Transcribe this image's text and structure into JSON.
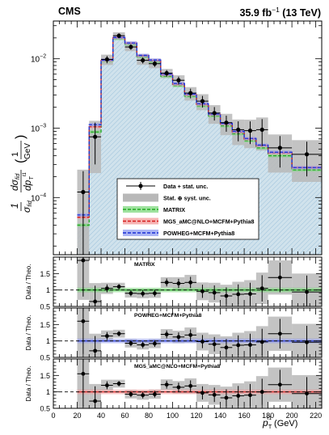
{
  "header": {
    "experiment": "CMS",
    "luminosity_label": "35.9 fb",
    "luminosity_exponent": "−1",
    "energy_label": "(13 TeV)"
  },
  "legend": {
    "placement": "lower-center inside main panel",
    "entries": [
      {
        "label": "Data + stat. unc.",
        "style": "data"
      },
      {
        "label": "Stat. ⊕ syst. unc.",
        "style": "grey-box"
      },
      {
        "label": "MATRIX",
        "style": "green"
      },
      {
        "label": "MG5_aMC@NLO+MCFM+Pythia8",
        "style": "red"
      },
      {
        "label": "POWHEG+MCFM+Pythia8",
        "style": "blue"
      }
    ]
  },
  "colors": {
    "hatch_fill": "#d0e2ec",
    "hatch_line": "#4a90c0",
    "matrix": "#22aa22",
    "matrix_band": "#7ed87e",
    "mg5": "#d41c1c",
    "mg5_band": "#f39a9a",
    "powheg": "#1a2fd6",
    "powheg_band": "#8f9bf0",
    "unc_box": "#b8b8b8",
    "data": "#000000"
  },
  "chart_data": {
    "type": "line",
    "x_bin_edges": [
      0,
      10,
      20,
      30,
      40,
      50,
      60,
      70,
      80,
      90,
      100,
      110,
      120,
      130,
      140,
      150,
      160,
      170,
      180,
      200,
      225
    ],
    "xlim": [
      0,
      225
    ],
    "x_ticks": [
      0,
      20,
      40,
      60,
      80,
      100,
      120,
      140,
      160,
      180,
      200,
      220
    ],
    "xlabel": {
      "base": "p",
      "sub": "T",
      "sup": "ℓ1",
      "unit": "(GeV)"
    },
    "main_panel": {
      "ylabel": {
        "prefix": "1",
        "sigma": "σ",
        "sub_fid": "fid",
        "d": "d",
        "pt_base": "p",
        "pt_sub": "T",
        "pt_sup": "ℓ1",
        "unit_num": "1",
        "unit_den": "GeV"
      },
      "y_scale": "log",
      "ylim": [
        1.5e-05,
        0.035
      ],
      "y_tick_labels": [
        {
          "value": 0.0001,
          "mantissa": "10",
          "exponent": "−4"
        },
        {
          "value": 0.001,
          "mantissa": "10",
          "exponent": "−3"
        },
        {
          "value": 0.01,
          "mantissa": "10",
          "exponent": "−2"
        }
      ],
      "series": [
        {
          "name": "Data + stat. unc.",
          "kind": "points",
          "x": [
            25,
            35,
            45,
            55,
            65,
            75,
            85,
            95,
            105,
            115,
            125,
            135,
            145,
            155,
            165,
            175,
            190,
            212.5
          ],
          "y": [
            0.00012,
            0.00075,
            0.0098,
            0.0215,
            0.0148,
            0.0095,
            0.0085,
            0.0062,
            0.0049,
            0.0032,
            0.00245,
            0.00165,
            0.0012,
            0.00095,
            0.00092,
            0.00095,
            0.00052,
            0.00042
          ],
          "y_unc_rel": [
            1.0,
            0.6,
            0.12,
            0.08,
            0.09,
            0.1,
            0.1,
            0.11,
            0.13,
            0.16,
            0.19,
            0.22,
            0.26,
            0.32,
            0.36,
            0.42,
            0.48,
            0.52
          ],
          "syst_band_rel": [
            1.1,
            0.7,
            0.17,
            0.12,
            0.13,
            0.14,
            0.14,
            0.15,
            0.18,
            0.22,
            0.26,
            0.3,
            0.34,
            0.4,
            0.44,
            0.5,
            0.56,
            0.6
          ]
        },
        {
          "name": "MATRIX",
          "kind": "step",
          "values": [
            0.0,
            0.0,
            4e-05,
            0.00088,
            0.0093,
            0.0195,
            0.0162,
            0.0107,
            0.0091,
            0.0056,
            0.0041,
            0.0029,
            0.0021,
            0.0015,
            0.00108,
            0.00083,
            0.00066,
            0.00052,
            0.0004,
            0.00025
          ]
        },
        {
          "name": "MG5_aMC@NLO+MCFM+Pythia8",
          "kind": "step",
          "values": [
            0.0,
            0.0,
            5.2e-05,
            0.00105,
            0.0095,
            0.0202,
            0.0168,
            0.0111,
            0.0095,
            0.0059,
            0.0043,
            0.00305,
            0.0022,
            0.00158,
            0.00115,
            0.00088,
            0.0007,
            0.00056,
            0.00044,
            0.00027
          ]
        },
        {
          "name": "POWHEG+MCFM+Pythia8",
          "kind": "step",
          "values": [
            0.0,
            0.0,
            5.6e-05,
            0.00112,
            0.0096,
            0.0203,
            0.0169,
            0.0112,
            0.0096,
            0.006,
            0.0044,
            0.0031,
            0.00225,
            0.0016,
            0.00117,
            0.0009,
            0.00071,
            0.00057,
            0.00045,
            0.00027
          ]
        }
      ]
    },
    "ratio_panels": [
      {
        "title": "MATRIX",
        "ylabel": "Data / Theo.",
        "ylim": [
          0.5,
          2.0
        ],
        "y_tick_labels": [
          "0.5",
          "1",
          "1.5"
        ],
        "theory": "MATRIX",
        "ratio": [
          1.9,
          0.65,
          1.05,
          1.1,
          0.9,
          0.89,
          0.9,
          1.23,
          1.2,
          1.23,
          0.96,
          0.92,
          0.82,
          0.87,
          0.88,
          1.05,
          1.38,
          0.94
        ],
        "ratio_unc": [
          1.1,
          0.48,
          0.12,
          0.08,
          0.09,
          0.1,
          0.1,
          0.12,
          0.14,
          0.17,
          0.2,
          0.22,
          0.26,
          0.3,
          0.34,
          0.4,
          0.45,
          0.5
        ],
        "syst_unc": [
          1.2,
          0.56,
          0.17,
          0.12,
          0.13,
          0.14,
          0.14,
          0.16,
          0.19,
          0.23,
          0.27,
          0.3,
          0.34,
          0.38,
          0.42,
          0.48,
          0.52,
          0.56
        ]
      },
      {
        "title": "POWHEG+MCFM+Pythia8",
        "ylabel": "Data / Theo.",
        "ylim": [
          0.5,
          2.0
        ],
        "y_tick_labels": [
          "0.5",
          "1",
          "1.5"
        ],
        "theory": "POWHEG+MCFM+Pythia8",
        "ratio": [
          1.6,
          0.7,
          1.15,
          1.22,
          0.93,
          0.88,
          0.92,
          1.2,
          1.12,
          1.18,
          0.98,
          0.9,
          0.8,
          0.87,
          0.88,
          0.97,
          1.22,
          0.96
        ],
        "ratio_unc": [
          1.0,
          0.45,
          0.12,
          0.08,
          0.09,
          0.1,
          0.1,
          0.12,
          0.14,
          0.17,
          0.2,
          0.22,
          0.26,
          0.3,
          0.34,
          0.4,
          0.45,
          0.5
        ],
        "syst_unc": [
          1.1,
          0.52,
          0.17,
          0.12,
          0.13,
          0.14,
          0.14,
          0.16,
          0.19,
          0.23,
          0.27,
          0.3,
          0.34,
          0.38,
          0.42,
          0.48,
          0.52,
          0.56
        ]
      },
      {
        "title": "MG5_aMC@NLO+MCFM+Pythia8",
        "ylabel": "Data / Theo.",
        "ylim": [
          0.5,
          2.0
        ],
        "y_tick_labels": [
          "0.5",
          "1",
          "1.5"
        ],
        "theory": "MG5_aMC@NLO+MCFM+Pythia8",
        "ratio": [
          1.55,
          0.72,
          1.2,
          1.25,
          0.93,
          0.9,
          0.93,
          1.22,
          1.14,
          1.18,
          0.97,
          0.91,
          0.82,
          0.88,
          0.9,
          1.0,
          1.22,
          0.95
        ],
        "ratio_unc": [
          1.0,
          0.45,
          0.12,
          0.08,
          0.09,
          0.1,
          0.1,
          0.12,
          0.14,
          0.17,
          0.2,
          0.22,
          0.26,
          0.3,
          0.34,
          0.4,
          0.45,
          0.5
        ],
        "syst_unc": [
          1.1,
          0.52,
          0.17,
          0.12,
          0.13,
          0.14,
          0.14,
          0.16,
          0.19,
          0.23,
          0.27,
          0.3,
          0.34,
          0.38,
          0.42,
          0.48,
          0.52,
          0.56
        ]
      }
    ]
  }
}
